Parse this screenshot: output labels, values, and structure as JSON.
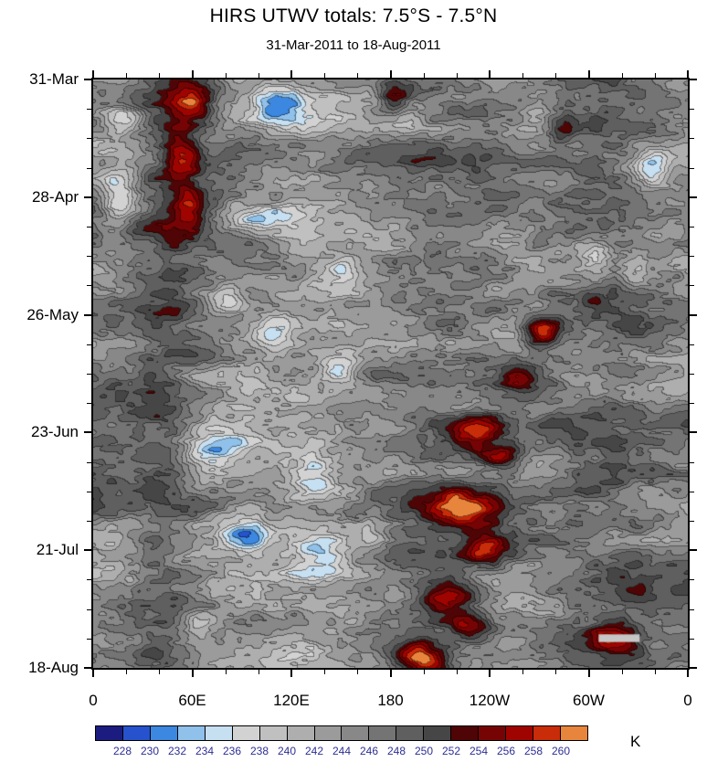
{
  "page": {
    "background": "#ffffff"
  },
  "chart_data": {
    "type": "heatmap",
    "title": "HIRS UTWV totals: 7.5°S - 7.5°N",
    "subtitle": "31-Mar-2011 to 18-Aug-2011",
    "x_axis": {
      "label": "",
      "ticks": [
        "0",
        "60E",
        "120E",
        "180",
        "120W",
        "60W",
        "0"
      ],
      "minor_per_major": 2
    },
    "y_axis": {
      "label": "",
      "ticks": [
        "31-Mar",
        "28-Apr",
        "26-May",
        "23-Jun",
        "21-Jul",
        "18-Aug"
      ],
      "minor_per_major": 3
    },
    "colorbar": {
      "unit": "K",
      "tick_labels": [
        "228",
        "230",
        "232",
        "234",
        "236",
        "238",
        "240",
        "242",
        "244",
        "246",
        "248",
        "250",
        "252",
        "254",
        "256",
        "258",
        "260"
      ],
      "levels": [
        228,
        230,
        232,
        234,
        236,
        238,
        240,
        242,
        244,
        246,
        248,
        250,
        252,
        254,
        256,
        258,
        260
      ],
      "colors": [
        "#1c1c80",
        "#2653cd",
        "#3c87e0",
        "#8fc1ea",
        "#c6e0f2",
        "#d2d2d2",
        "#c0c0c0",
        "#aeaeae",
        "#9b9b9b",
        "#888888",
        "#747474",
        "#5f5f5f",
        "#464646",
        "#4f0505",
        "#770404",
        "#a00400",
        "#c92c08",
        "#e8853d"
      ],
      "label_color": "#2e2e96"
    },
    "field": {
      "base": 245.0,
      "bands": [
        [
          0.115,
          0.055,
          4.2
        ],
        [
          0.345,
          0.12,
          -3.2
        ],
        [
          0.565,
          0.06,
          2.2
        ],
        [
          0.66,
          0.05,
          2.5
        ],
        [
          0.865,
          0.095,
          4.0
        ]
      ],
      "blobs": [
        [
          0.05,
          0.07,
          0.035,
          0.03,
          -9
        ],
        [
          0.3,
          0.04,
          0.045,
          0.03,
          -9
        ],
        [
          0.045,
          0.2,
          0.03,
          0.045,
          -11
        ],
        [
          0.285,
          0.235,
          0.065,
          0.022,
          -10
        ],
        [
          0.225,
          0.375,
          0.035,
          0.03,
          -8
        ],
        [
          0.3,
          0.43,
          0.04,
          0.03,
          -9
        ],
        [
          0.415,
          0.495,
          0.035,
          0.03,
          -10
        ],
        [
          0.205,
          0.625,
          0.055,
          0.035,
          -12
        ],
        [
          0.37,
          0.68,
          0.04,
          0.03,
          -9
        ],
        [
          0.255,
          0.775,
          0.04,
          0.03,
          -10
        ],
        [
          0.385,
          0.805,
          0.05,
          0.035,
          -11
        ],
        [
          0.47,
          0.775,
          0.03,
          0.025,
          -7
        ],
        [
          0.175,
          0.92,
          0.035,
          0.025,
          -8
        ],
        [
          0.94,
          0.15,
          0.03,
          0.035,
          -10
        ],
        [
          0.845,
          0.3,
          0.035,
          0.03,
          -8
        ],
        [
          0.91,
          0.33,
          0.03,
          0.025,
          -6
        ],
        [
          0.53,
          0.07,
          0.03,
          0.025,
          -6
        ],
        [
          0.42,
          0.32,
          0.03,
          0.022,
          -7
        ],
        [
          0.165,
          0.045,
          0.04,
          0.045,
          14
        ],
        [
          0.15,
          0.13,
          0.028,
          0.04,
          9
        ],
        [
          0.505,
          0.025,
          0.03,
          0.03,
          10
        ],
        [
          0.16,
          0.215,
          0.025,
          0.035,
          8
        ],
        [
          0.755,
          0.43,
          0.03,
          0.025,
          16
        ],
        [
          0.72,
          0.51,
          0.04,
          0.03,
          11
        ],
        [
          0.64,
          0.6,
          0.045,
          0.03,
          12
        ],
        [
          0.69,
          0.64,
          0.035,
          0.025,
          10
        ],
        [
          0.615,
          0.73,
          0.045,
          0.028,
          12
        ],
        [
          0.66,
          0.8,
          0.04,
          0.028,
          12
        ],
        [
          0.6,
          0.88,
          0.045,
          0.03,
          12
        ],
        [
          0.635,
          0.93,
          0.035,
          0.025,
          10
        ],
        [
          0.555,
          0.985,
          0.045,
          0.03,
          16
        ],
        [
          0.88,
          0.95,
          0.04,
          0.025,
          10
        ],
        [
          0.79,
          0.075,
          0.025,
          0.03,
          7
        ]
      ],
      "noise_octaves": [
        [
          150,
          42,
          7.5,
          11
        ],
        [
          55,
          18,
          5.5,
          22
        ],
        [
          22,
          9,
          3.6,
          33
        ],
        [
          10,
          4.5,
          2.4,
          44
        ]
      ]
    },
    "overlays": [
      {
        "type": "missing-data-bar",
        "x": 0.85,
        "y": 0.943,
        "w": 0.069,
        "h": 0.013,
        "color": "#c6c6c6"
      }
    ]
  }
}
